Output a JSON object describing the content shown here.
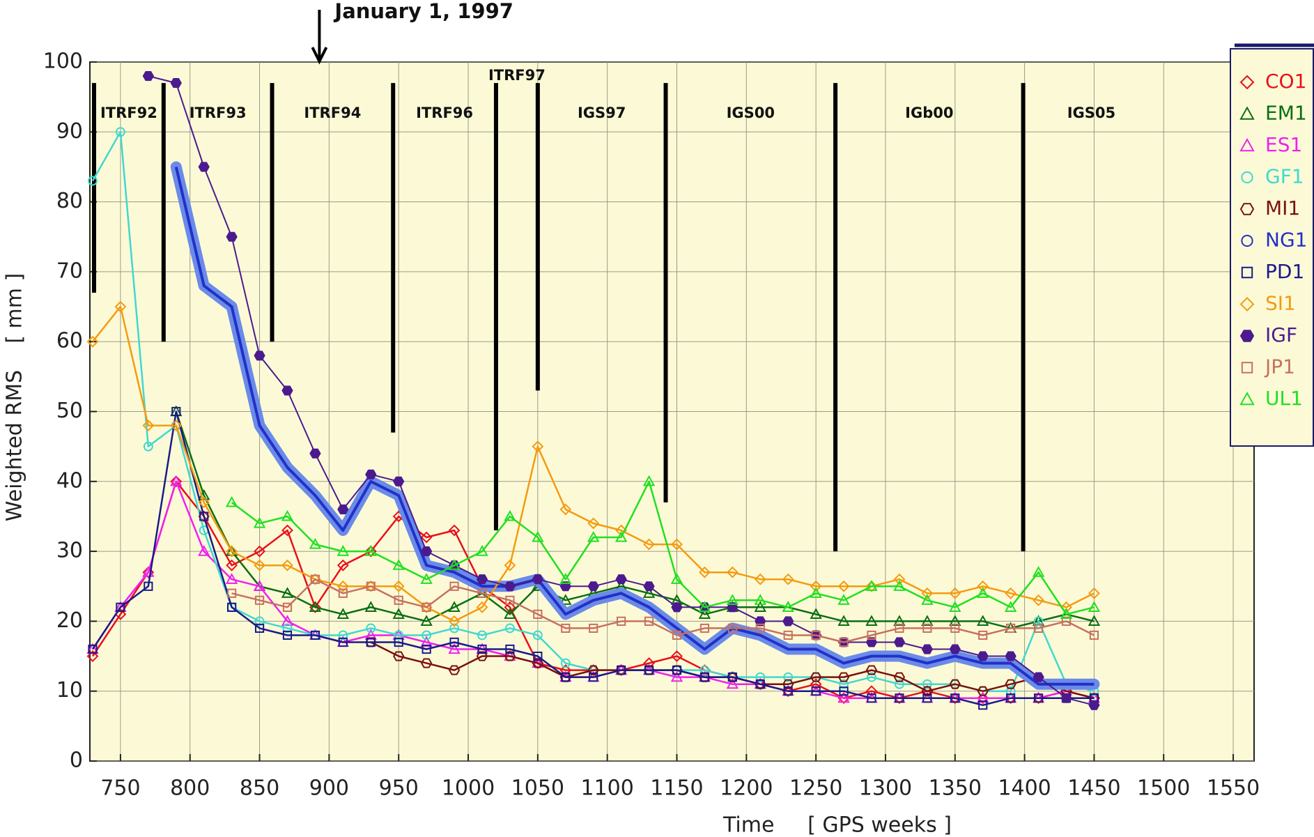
{
  "chart_data": {
    "type": "line",
    "annotation": {
      "text": "January 1, 1997",
      "week": 893
    },
    "y_label": "Weighted RMS    [ mm ]",
    "x_label": "Time     [ GPS weeks ]",
    "xlim": [
      728,
      1565
    ],
    "ylim": [
      0,
      100
    ],
    "xticks": [
      750,
      800,
      850,
      900,
      950,
      1000,
      1050,
      1100,
      1150,
      1200,
      1250,
      1300,
      1350,
      1400,
      1450,
      1500,
      1550
    ],
    "yticks": [
      0,
      10,
      20,
      30,
      40,
      50,
      60,
      70,
      80,
      90,
      100
    ],
    "grid": true,
    "legend": "upper right",
    "bar_top": 97,
    "frame_changes": [
      {
        "label": "ITRF92",
        "week": 731,
        "bar_bottom": 67
      },
      {
        "label": "ITRF93",
        "week": 781,
        "bar_bottom": 60
      },
      {
        "label": "ITRF94",
        "week": 859,
        "bar_bottom": 60
      },
      {
        "label": "ITRF96",
        "week": 946,
        "bar_bottom": 47
      },
      {
        "label": "ITRF97",
        "week": 1020,
        "bar_bottom": 33
      },
      {
        "label": "IGS97",
        "week": 1050,
        "bar_bottom": 53
      },
      {
        "label": "IGS00",
        "week": 1142,
        "bar_bottom": 37
      },
      {
        "label": "IGb00",
        "week": 1264,
        "bar_bottom": 30
      },
      {
        "label": "IGS05",
        "week": 1399,
        "bar_bottom": 30
      }
    ],
    "x": [
      730,
      750,
      770,
      790,
      810,
      830,
      850,
      870,
      890,
      910,
      930,
      950,
      970,
      990,
      1010,
      1030,
      1050,
      1070,
      1090,
      1110,
      1130,
      1150,
      1170,
      1190,
      1210,
      1230,
      1250,
      1270,
      1290,
      1310,
      1330,
      1350,
      1370,
      1390,
      1410,
      1430,
      1450
    ],
    "series": [
      {
        "name": "CO1",
        "color": "#e8101a",
        "marker": "diamond",
        "line_width": 2.5,
        "values": [
          15,
          21,
          27,
          40,
          35,
          28,
          30,
          33,
          22,
          28,
          30,
          35,
          32,
          33,
          25,
          22,
          14,
          13,
          13,
          13,
          14,
          15,
          13,
          12,
          11,
          10,
          11,
          9,
          10,
          9,
          10,
          9,
          9,
          9,
          9,
          10,
          9
        ]
      },
      {
        "name": "EM1",
        "color": "#0a6e12",
        "marker": "triangle",
        "line_width": 2.5,
        "values": [
          null,
          null,
          null,
          50,
          38,
          30,
          25,
          24,
          22,
          21,
          22,
          21,
          20,
          22,
          24,
          21,
          25,
          23,
          24,
          25,
          24,
          23,
          21,
          22,
          22,
          22,
          21,
          20,
          20,
          20,
          20,
          20,
          20,
          19,
          20,
          21,
          20
        ]
      },
      {
        "name": "ES1",
        "color": "#f020f0",
        "marker": "triangle",
        "line_width": 2.5,
        "values": [
          16,
          22,
          27,
          40,
          30,
          26,
          25,
          20,
          18,
          17,
          18,
          18,
          17,
          16,
          16,
          15,
          14,
          12,
          12,
          13,
          13,
          12,
          12,
          11,
          11,
          10,
          10,
          9,
          9,
          9,
          9,
          9,
          9,
          9,
          9,
          10,
          9
        ]
      },
      {
        "name": "GF1",
        "color": "#40d8d0",
        "marker": "circle",
        "line_width": 2.5,
        "values": [
          83,
          90,
          45,
          48,
          33,
          22,
          20,
          19,
          18,
          18,
          19,
          18,
          18,
          19,
          18,
          19,
          18,
          14,
          13,
          13,
          13,
          13,
          13,
          12,
          12,
          12,
          12,
          11,
          12,
          11,
          11,
          11,
          10,
          10,
          20,
          11,
          10
        ]
      },
      {
        "name": "MI1",
        "color": "#7a1010",
        "marker": "hexagon",
        "line_width": 2.5,
        "values": [
          null,
          null,
          null,
          null,
          null,
          null,
          null,
          null,
          null,
          null,
          17,
          15,
          14,
          13,
          15,
          15,
          14,
          12,
          13,
          13,
          13,
          13,
          12,
          12,
          11,
          11,
          12,
          12,
          13,
          12,
          10,
          11,
          10,
          11,
          12,
          10,
          9
        ]
      },
      {
        "name": "NG1",
        "color": "#2230c8",
        "marker": "circle",
        "line_width": 4,
        "halo_color": "#6a8be8",
        "values": [
          null,
          null,
          null,
          85,
          68,
          65,
          48,
          42,
          38,
          33,
          40,
          38,
          28,
          27,
          25,
          25,
          26,
          21,
          23,
          24,
          22,
          19,
          16,
          19,
          18,
          16,
          16,
          14,
          15,
          15,
          14,
          15,
          14,
          14,
          11,
          11,
          11
        ]
      },
      {
        "name": "PD1",
        "color": "#1a1a8a",
        "marker": "square",
        "line_width": 2.5,
        "values": [
          16,
          22,
          25,
          50,
          35,
          22,
          19,
          18,
          18,
          17,
          17,
          17,
          16,
          17,
          16,
          16,
          15,
          12,
          12,
          13,
          13,
          13,
          12,
          12,
          11,
          10,
          10,
          10,
          9,
          9,
          9,
          9,
          8,
          9,
          9,
          9,
          9
        ]
      },
      {
        "name": "SI1",
        "color": "#f59a10",
        "marker": "diamond",
        "line_width": 2.5,
        "values": [
          60,
          65,
          48,
          48,
          37,
          30,
          28,
          28,
          26,
          25,
          25,
          25,
          22,
          20,
          22,
          28,
          45,
          36,
          34,
          33,
          31,
          31,
          27,
          27,
          26,
          26,
          25,
          25,
          25,
          26,
          24,
          24,
          25,
          24,
          23,
          22,
          24
        ]
      },
      {
        "name": "IGF",
        "color": "#4b1a8f",
        "marker": "filled-hexagon",
        "line_width": 2,
        "values": [
          null,
          null,
          98,
          97,
          85,
          75,
          58,
          53,
          44,
          36,
          41,
          40,
          30,
          28,
          26,
          25,
          26,
          25,
          25,
          26,
          25,
          22,
          22,
          22,
          20,
          20,
          18,
          17,
          17,
          17,
          16,
          16,
          15,
          15,
          12,
          9,
          8
        ]
      },
      {
        "name": "JP1",
        "color": "#c87060",
        "marker": "square",
        "line_width": 2.5,
        "values": [
          null,
          null,
          null,
          null,
          null,
          24,
          23,
          22,
          26,
          24,
          25,
          23,
          22,
          25,
          24,
          23,
          21,
          19,
          19,
          20,
          20,
          18,
          19,
          19,
          19,
          18,
          18,
          17,
          18,
          19,
          19,
          19,
          18,
          19,
          19,
          20,
          18
        ]
      },
      {
        "name": "UL1",
        "color": "#20e020",
        "marker": "triangle",
        "line_width": 2.5,
        "values": [
          null,
          null,
          null,
          null,
          null,
          37,
          34,
          35,
          31,
          30,
          30,
          28,
          26,
          28,
          30,
          35,
          32,
          26,
          32,
          32,
          40,
          26,
          22,
          23,
          23,
          22,
          24,
          23,
          25,
          25,
          23,
          22,
          24,
          22,
          27,
          21,
          22
        ]
      }
    ]
  }
}
